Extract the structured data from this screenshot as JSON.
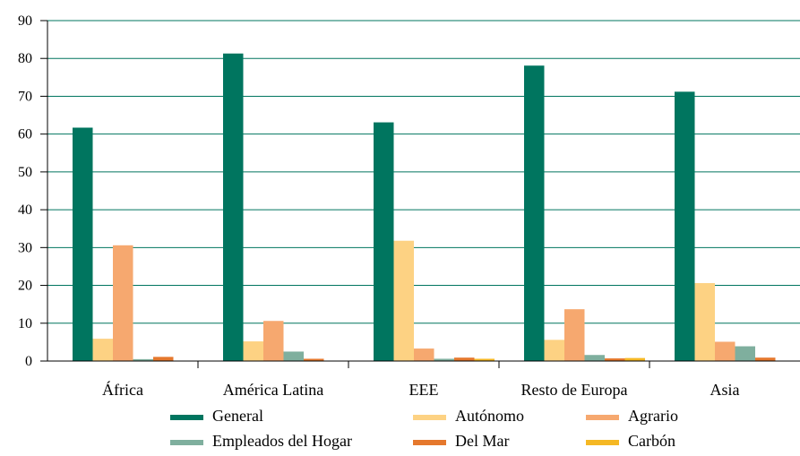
{
  "chart_data": {
    "type": "bar",
    "categories": [
      "África",
      "América Latina",
      "EEE",
      "Resto de Europa",
      "Asia"
    ],
    "series": [
      {
        "name": "General",
        "color": "#00755f",
        "values": [
          61.7,
          81.3,
          63.1,
          78.1,
          71.2
        ]
      },
      {
        "name": "Autónomo",
        "color": "#fdd283",
        "values": [
          5.9,
          5.2,
          31.8,
          5.6,
          20.6
        ]
      },
      {
        "name": "Agrario",
        "color": "#f6a86f",
        "values": [
          30.6,
          10.6,
          3.3,
          13.7,
          5.1
        ]
      },
      {
        "name": "Empleados del Hogar",
        "color": "#7faf9e",
        "values": [
          0.5,
          2.5,
          0.6,
          1.6,
          3.9
        ]
      },
      {
        "name": "Del Mar",
        "color": "#e5782d",
        "values": [
          1.1,
          0.6,
          0.9,
          0.7,
          0.9
        ]
      },
      {
        "name": "Carbón",
        "color": "#f5b824",
        "values": [
          0,
          0,
          0.6,
          0.8,
          0
        ]
      }
    ],
    "ylim": [
      0,
      90
    ],
    "yticks": [
      0,
      10,
      20,
      30,
      40,
      50,
      60,
      70,
      80,
      90
    ],
    "grid": true,
    "legend": "bottom"
  }
}
